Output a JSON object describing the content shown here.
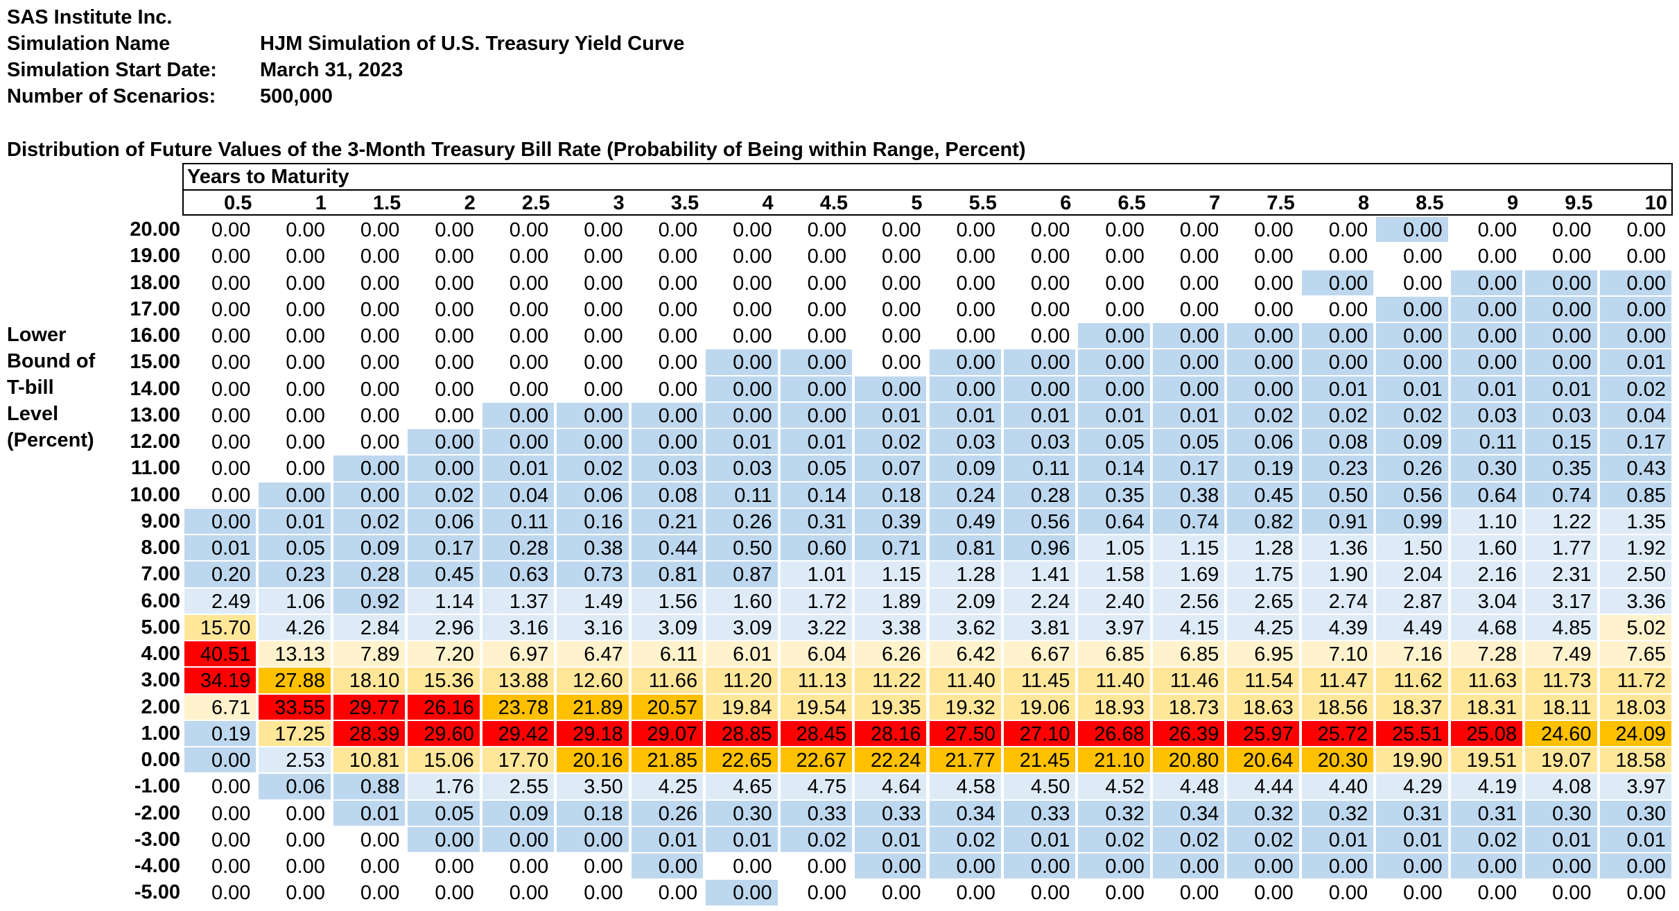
{
  "header": {
    "company": "SAS Institute Inc.",
    "rows": [
      {
        "label": "Simulation Name",
        "value": "HJM Simulation of U.S. Treasury Yield Curve"
      },
      {
        "label": "Simulation Start Date:",
        "value": "March 31, 2023"
      },
      {
        "label": "Number of Scenarios:",
        "value": "500,000"
      }
    ]
  },
  "table": {
    "title": "Distribution of Future Values of the 3-Month Treasury Bill Rate (Probability of Being within Range, Percent)",
    "column_group_label": "Years to Maturity",
    "row_group_label": [
      "Lower",
      "Bound of",
      "T-bill",
      "Level",
      "(Percent)"
    ],
    "columns": [
      "0.5",
      "1",
      "1.5",
      "2",
      "2.5",
      "3",
      "3.5",
      "4",
      "4.5",
      "5",
      "5.5",
      "6",
      "6.5",
      "7",
      "7.5",
      "8",
      "8.5",
      "9",
      "9.5",
      "10"
    ],
    "colors": {
      "white": "#ffffff",
      "light_blue": "#bdd7ee",
      "pale_blue": "#deebf7",
      "cream": "#fff2cc",
      "light_yellow": "#ffe699",
      "gold": "#ffc000",
      "red": "#ff0000"
    },
    "rows": [
      {
        "label": "20.00",
        "values": [
          "0.00",
          "0.00",
          "0.00",
          "0.00",
          "0.00",
          "0.00",
          "0.00",
          "0.00",
          "0.00",
          "0.00",
          "0.00",
          "0.00",
          "0.00",
          "0.00",
          "0.00",
          "0.00",
          "0.00",
          "0.00",
          "0.00",
          "0.00"
        ],
        "colors": "wwwwwwwwwwwwwwwwBwww"
      },
      {
        "label": "19.00",
        "values": [
          "0.00",
          "0.00",
          "0.00",
          "0.00",
          "0.00",
          "0.00",
          "0.00",
          "0.00",
          "0.00",
          "0.00",
          "0.00",
          "0.00",
          "0.00",
          "0.00",
          "0.00",
          "0.00",
          "0.00",
          "0.00",
          "0.00",
          "0.00"
        ],
        "colors": "wwwwwwwwwwwwwwwwwwww"
      },
      {
        "label": "18.00",
        "values": [
          "0.00",
          "0.00",
          "0.00",
          "0.00",
          "0.00",
          "0.00",
          "0.00",
          "0.00",
          "0.00",
          "0.00",
          "0.00",
          "0.00",
          "0.00",
          "0.00",
          "0.00",
          "0.00",
          "0.00",
          "0.00",
          "0.00",
          "0.00"
        ],
        "colors": "wwwwwwwwwwwwwwwBwBBB"
      },
      {
        "label": "17.00",
        "values": [
          "0.00",
          "0.00",
          "0.00",
          "0.00",
          "0.00",
          "0.00",
          "0.00",
          "0.00",
          "0.00",
          "0.00",
          "0.00",
          "0.00",
          "0.00",
          "0.00",
          "0.00",
          "0.00",
          "0.00",
          "0.00",
          "0.00",
          "0.00"
        ],
        "colors": "wwwwwwwwwwwwwwwwBBBB"
      },
      {
        "label": "16.00",
        "values": [
          "0.00",
          "0.00",
          "0.00",
          "0.00",
          "0.00",
          "0.00",
          "0.00",
          "0.00",
          "0.00",
          "0.00",
          "0.00",
          "0.00",
          "0.00",
          "0.00",
          "0.00",
          "0.00",
          "0.00",
          "0.00",
          "0.00",
          "0.00"
        ],
        "colors": "wwwwwwwwwwwwBBBBBBBB"
      },
      {
        "label": "15.00",
        "values": [
          "0.00",
          "0.00",
          "0.00",
          "0.00",
          "0.00",
          "0.00",
          "0.00",
          "0.00",
          "0.00",
          "0.00",
          "0.00",
          "0.00",
          "0.00",
          "0.00",
          "0.00",
          "0.00",
          "0.00",
          "0.00",
          "0.00",
          "0.01"
        ],
        "colors": "wwwwwwwBBwBBBBBBBBBB"
      },
      {
        "label": "14.00",
        "values": [
          "0.00",
          "0.00",
          "0.00",
          "0.00",
          "0.00",
          "0.00",
          "0.00",
          "0.00",
          "0.00",
          "0.00",
          "0.00",
          "0.00",
          "0.00",
          "0.00",
          "0.00",
          "0.01",
          "0.01",
          "0.01",
          "0.01",
          "0.02"
        ],
        "colors": "wwwwwwwBBBBBBBBBBBBB"
      },
      {
        "label": "13.00",
        "values": [
          "0.00",
          "0.00",
          "0.00",
          "0.00",
          "0.00",
          "0.00",
          "0.00",
          "0.00",
          "0.00",
          "0.01",
          "0.01",
          "0.01",
          "0.01",
          "0.01",
          "0.02",
          "0.02",
          "0.02",
          "0.03",
          "0.03",
          "0.04"
        ],
        "colors": "wwwwBBBBBBBBBBBBBBBB"
      },
      {
        "label": "12.00",
        "values": [
          "0.00",
          "0.00",
          "0.00",
          "0.00",
          "0.00",
          "0.00",
          "0.00",
          "0.01",
          "0.01",
          "0.02",
          "0.03",
          "0.03",
          "0.05",
          "0.05",
          "0.06",
          "0.08",
          "0.09",
          "0.11",
          "0.15",
          "0.17"
        ],
        "colors": "wwwBBBBBBBBBBBBBBBBB"
      },
      {
        "label": "11.00",
        "values": [
          "0.00",
          "0.00",
          "0.00",
          "0.00",
          "0.01",
          "0.02",
          "0.03",
          "0.03",
          "0.05",
          "0.07",
          "0.09",
          "0.11",
          "0.14",
          "0.17",
          "0.19",
          "0.23",
          "0.26",
          "0.30",
          "0.35",
          "0.43"
        ],
        "colors": "wwBBBBBBBBBBBBBBBBBB"
      },
      {
        "label": "10.00",
        "values": [
          "0.00",
          "0.00",
          "0.00",
          "0.02",
          "0.04",
          "0.06",
          "0.08",
          "0.11",
          "0.14",
          "0.18",
          "0.24",
          "0.28",
          "0.35",
          "0.38",
          "0.45",
          "0.50",
          "0.56",
          "0.64",
          "0.74",
          "0.85"
        ],
        "colors": "wBBBBBBBBBBBBBBBBBBB"
      },
      {
        "label": "9.00",
        "values": [
          "0.00",
          "0.01",
          "0.02",
          "0.06",
          "0.11",
          "0.16",
          "0.21",
          "0.26",
          "0.31",
          "0.39",
          "0.49",
          "0.56",
          "0.64",
          "0.74",
          "0.82",
          "0.91",
          "0.99",
          "1.10",
          "1.22",
          "1.35"
        ],
        "colors": "BBBBBBBBBBBBBBBBBppp"
      },
      {
        "label": "8.00",
        "values": [
          "0.01",
          "0.05",
          "0.09",
          "0.17",
          "0.28",
          "0.38",
          "0.44",
          "0.50",
          "0.60",
          "0.71",
          "0.81",
          "0.96",
          "1.05",
          "1.15",
          "1.28",
          "1.36",
          "1.50",
          "1.60",
          "1.77",
          "1.92"
        ],
        "colors": "BBBBBBBBBBBBpppppppp"
      },
      {
        "label": "7.00",
        "values": [
          "0.20",
          "0.23",
          "0.28",
          "0.45",
          "0.63",
          "0.73",
          "0.81",
          "0.87",
          "1.01",
          "1.15",
          "1.28",
          "1.41",
          "1.58",
          "1.69",
          "1.75",
          "1.90",
          "2.04",
          "2.16",
          "2.31",
          "2.50"
        ],
        "colors": "BBBBBBBBpppppppppppp"
      },
      {
        "label": "6.00",
        "values": [
          "2.49",
          "1.06",
          "0.92",
          "1.14",
          "1.37",
          "1.49",
          "1.56",
          "1.60",
          "1.72",
          "1.89",
          "2.09",
          "2.24",
          "2.40",
          "2.56",
          "2.65",
          "2.74",
          "2.87",
          "3.04",
          "3.17",
          "3.36"
        ],
        "colors": "ppBppppppppppppppppp"
      },
      {
        "label": "5.00",
        "values": [
          "15.70",
          "4.26",
          "2.84",
          "2.96",
          "3.16",
          "3.16",
          "3.09",
          "3.09",
          "3.22",
          "3.38",
          "3.62",
          "3.81",
          "3.97",
          "4.15",
          "4.25",
          "4.39",
          "4.49",
          "4.68",
          "4.85",
          "5.02"
        ],
        "colors": "Yppppppppppppppppppc"
      },
      {
        "label": "4.00",
        "values": [
          "40.51",
          "13.13",
          "7.89",
          "7.20",
          "6.97",
          "6.47",
          "6.11",
          "6.01",
          "6.04",
          "6.26",
          "6.42",
          "6.67",
          "6.85",
          "6.85",
          "6.95",
          "7.10",
          "7.16",
          "7.28",
          "7.49",
          "7.65"
        ],
        "colors": "Rccccccccccccccccccc"
      },
      {
        "label": "3.00",
        "values": [
          "34.19",
          "27.88",
          "18.10",
          "15.36",
          "13.88",
          "12.60",
          "11.66",
          "11.20",
          "11.13",
          "11.22",
          "11.40",
          "11.45",
          "11.40",
          "11.46",
          "11.54",
          "11.47",
          "11.62",
          "11.63",
          "11.73",
          "11.72"
        ],
        "colors": "RGYYYYYYYYYYYYYYYYYY"
      },
      {
        "label": "2.00",
        "values": [
          "6.71",
          "33.55",
          "29.77",
          "26.16",
          "23.78",
          "21.89",
          "20.57",
          "19.84",
          "19.54",
          "19.35",
          "19.32",
          "19.06",
          "18.93",
          "18.73",
          "18.63",
          "18.56",
          "18.37",
          "18.31",
          "18.11",
          "18.03"
        ],
        "colors": "cRRRGGGYYYYYYYYYYYYY"
      },
      {
        "label": "1.00",
        "values": [
          "0.19",
          "17.25",
          "28.39",
          "29.60",
          "29.42",
          "29.18",
          "29.07",
          "28.85",
          "28.45",
          "28.16",
          "27.50",
          "27.10",
          "26.68",
          "26.39",
          "25.97",
          "25.72",
          "25.51",
          "25.08",
          "24.60",
          "24.09"
        ],
        "colors": "BYRRRRRRRRRRRRRRRRGG"
      },
      {
        "label": "0.00",
        "values": [
          "0.00",
          "2.53",
          "10.81",
          "15.06",
          "17.70",
          "20.16",
          "21.85",
          "22.65",
          "22.67",
          "22.24",
          "21.77",
          "21.45",
          "21.10",
          "20.80",
          "20.64",
          "20.30",
          "19.90",
          "19.51",
          "19.07",
          "18.58"
        ],
        "colors": "BpYYYGGGGGGGGGGGYYYY"
      },
      {
        "label": "-1.00",
        "values": [
          "0.00",
          "0.06",
          "0.88",
          "1.76",
          "2.55",
          "3.50",
          "4.25",
          "4.65",
          "4.75",
          "4.64",
          "4.58",
          "4.50",
          "4.52",
          "4.48",
          "4.44",
          "4.40",
          "4.29",
          "4.19",
          "4.08",
          "3.97"
        ],
        "colors": "wBBppppppppppppppppp"
      },
      {
        "label": "-2.00",
        "values": [
          "0.00",
          "0.00",
          "0.01",
          "0.05",
          "0.09",
          "0.18",
          "0.26",
          "0.30",
          "0.33",
          "0.33",
          "0.34",
          "0.33",
          "0.32",
          "0.34",
          "0.32",
          "0.32",
          "0.31",
          "0.31",
          "0.30",
          "0.30"
        ],
        "colors": "wwBBBBBBBBBBBBBBBBBB"
      },
      {
        "label": "-3.00",
        "values": [
          "0.00",
          "0.00",
          "0.00",
          "0.00",
          "0.00",
          "0.00",
          "0.01",
          "0.01",
          "0.02",
          "0.01",
          "0.02",
          "0.01",
          "0.02",
          "0.02",
          "0.02",
          "0.01",
          "0.01",
          "0.02",
          "0.01",
          "0.01"
        ],
        "colors": "wwwBBBBBBBBBBBBBBBBB"
      },
      {
        "label": "-4.00",
        "values": [
          "0.00",
          "0.00",
          "0.00",
          "0.00",
          "0.00",
          "0.00",
          "0.00",
          "0.00",
          "0.00",
          "0.00",
          "0.00",
          "0.00",
          "0.00",
          "0.00",
          "0.00",
          "0.00",
          "0.00",
          "0.00",
          "0.00",
          "0.00"
        ],
        "colors": "wwwwwwBwwBBBBBBBBBBB"
      },
      {
        "label": "-5.00",
        "values": [
          "0.00",
          "0.00",
          "0.00",
          "0.00",
          "0.00",
          "0.00",
          "0.00",
          "0.00",
          "0.00",
          "0.00",
          "0.00",
          "0.00",
          "0.00",
          "0.00",
          "0.00",
          "0.00",
          "0.00",
          "0.00",
          "0.00",
          "0.00"
        ],
        "colors": "wwwwwwwBwwwwwwwwwwww"
      }
    ]
  }
}
